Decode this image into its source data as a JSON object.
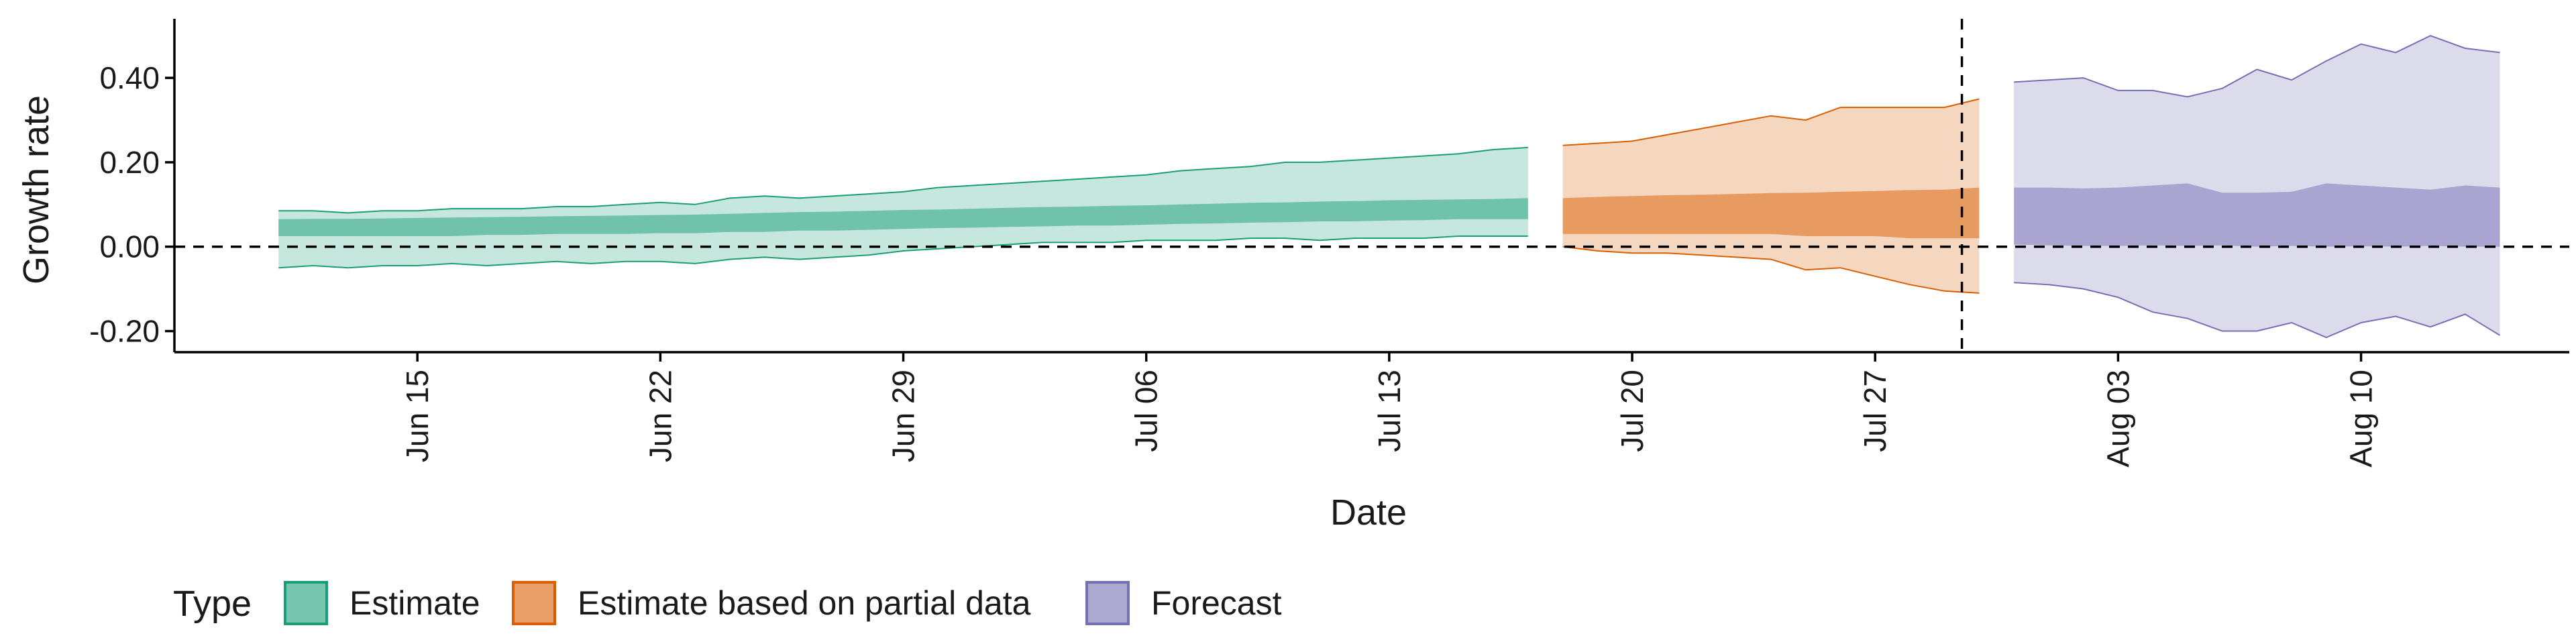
{
  "chart_data": {
    "type": "area",
    "xlabel": "Date",
    "ylabel": "Growth rate",
    "x_ticks": [
      "Jun 15",
      "Jun 22",
      "Jun 29",
      "Jul 06",
      "Jul 13",
      "Jul 20",
      "Jul 27",
      "Aug 03",
      "Aug 10"
    ],
    "y_ticks": [
      "0.40",
      "0.20",
      "0.00",
      "-0.20"
    ],
    "ylim": [
      -0.25,
      0.54
    ],
    "xlim": [
      "2020-06-08",
      "2020-08-16"
    ],
    "reference_lines": {
      "horizontal_y": 0,
      "vertical_x": "2020-07-30"
    },
    "legend": {
      "title": "Type",
      "placement": "bottom-left",
      "entries": [
        "Estimate",
        "Estimate based on partial data",
        "Forecast"
      ]
    },
    "series": [
      {
        "name": "Estimate",
        "color": "#1b9e77",
        "dates": [
          "2020-06-11",
          "2020-06-12",
          "2020-06-13",
          "2020-06-14",
          "2020-06-15",
          "2020-06-16",
          "2020-06-17",
          "2020-06-18",
          "2020-06-19",
          "2020-06-20",
          "2020-06-21",
          "2020-06-22",
          "2020-06-23",
          "2020-06-24",
          "2020-06-25",
          "2020-06-26",
          "2020-06-27",
          "2020-06-28",
          "2020-06-29",
          "2020-06-30",
          "2020-07-01",
          "2020-07-02",
          "2020-07-03",
          "2020-07-04",
          "2020-07-05",
          "2020-07-06",
          "2020-07-07",
          "2020-07-08",
          "2020-07-09",
          "2020-07-10",
          "2020-07-11",
          "2020-07-12",
          "2020-07-13",
          "2020-07-14",
          "2020-07-15",
          "2020-07-16",
          "2020-07-17"
        ],
        "lower90": [
          -0.05,
          -0.045,
          -0.05,
          -0.045,
          -0.045,
          -0.04,
          -0.045,
          -0.04,
          -0.035,
          -0.04,
          -0.035,
          -0.035,
          -0.04,
          -0.03,
          -0.025,
          -0.03,
          -0.025,
          -0.02,
          -0.01,
          -0.005,
          0.0,
          0.005,
          0.01,
          0.01,
          0.01,
          0.015,
          0.015,
          0.015,
          0.02,
          0.02,
          0.015,
          0.02,
          0.02,
          0.02,
          0.025,
          0.025,
          0.025
        ],
        "upper90": [
          0.085,
          0.085,
          0.08,
          0.085,
          0.085,
          0.09,
          0.09,
          0.09,
          0.095,
          0.095,
          0.1,
          0.105,
          0.1,
          0.115,
          0.12,
          0.115,
          0.12,
          0.125,
          0.13,
          0.14,
          0.145,
          0.15,
          0.155,
          0.16,
          0.165,
          0.17,
          0.18,
          0.185,
          0.19,
          0.2,
          0.2,
          0.205,
          0.21,
          0.215,
          0.22,
          0.23,
          0.235
        ],
        "lower50": [
          0.025,
          0.025,
          0.025,
          0.025,
          0.025,
          0.025,
          0.028,
          0.028,
          0.03,
          0.03,
          0.03,
          0.032,
          0.032,
          0.035,
          0.035,
          0.038,
          0.038,
          0.04,
          0.042,
          0.044,
          0.045,
          0.047,
          0.048,
          0.05,
          0.05,
          0.052,
          0.054,
          0.055,
          0.057,
          0.058,
          0.06,
          0.06,
          0.062,
          0.063,
          0.065,
          0.065,
          0.065
        ],
        "upper50": [
          0.065,
          0.066,
          0.066,
          0.067,
          0.068,
          0.069,
          0.07,
          0.071,
          0.072,
          0.073,
          0.074,
          0.075,
          0.076,
          0.078,
          0.08,
          0.082,
          0.083,
          0.085,
          0.087,
          0.088,
          0.09,
          0.092,
          0.094,
          0.095,
          0.097,
          0.098,
          0.1,
          0.102,
          0.104,
          0.105,
          0.107,
          0.108,
          0.11,
          0.111,
          0.112,
          0.113,
          0.115
        ]
      },
      {
        "name": "Estimate based on partial data",
        "color": "#d95f02",
        "dates": [
          "2020-07-18",
          "2020-07-19",
          "2020-07-20",
          "2020-07-21",
          "2020-07-22",
          "2020-07-23",
          "2020-07-24",
          "2020-07-25",
          "2020-07-26",
          "2020-07-27",
          "2020-07-28",
          "2020-07-29",
          "2020-07-30"
        ],
        "lower90": [
          0.0,
          -0.01,
          -0.015,
          -0.015,
          -0.02,
          -0.025,
          -0.03,
          -0.055,
          -0.05,
          -0.07,
          -0.09,
          -0.105,
          -0.11
        ],
        "upper90": [
          0.24,
          0.245,
          0.25,
          0.265,
          0.28,
          0.295,
          0.31,
          0.3,
          0.33,
          0.33,
          0.33,
          0.33,
          0.35
        ],
        "lower50": [
          0.03,
          0.03,
          0.03,
          0.03,
          0.03,
          0.03,
          0.03,
          0.025,
          0.025,
          0.025,
          0.02,
          0.02,
          0.02
        ],
        "upper50": [
          0.115,
          0.118,
          0.12,
          0.122,
          0.123,
          0.125,
          0.127,
          0.128,
          0.13,
          0.132,
          0.134,
          0.135,
          0.14
        ]
      },
      {
        "name": "Forecast",
        "color": "#7570b3",
        "dates": [
          "2020-07-31",
          "2020-08-01",
          "2020-08-02",
          "2020-08-03",
          "2020-08-04",
          "2020-08-05",
          "2020-08-06",
          "2020-08-07",
          "2020-08-08",
          "2020-08-09",
          "2020-08-10",
          "2020-08-11",
          "2020-08-12",
          "2020-08-13",
          "2020-08-14"
        ],
        "lower90": [
          -0.085,
          -0.09,
          -0.1,
          -0.12,
          -0.155,
          -0.17,
          -0.2,
          -0.2,
          -0.18,
          -0.215,
          -0.18,
          -0.165,
          -0.19,
          -0.16,
          -0.21
        ],
        "upper90": [
          0.39,
          0.395,
          0.4,
          0.37,
          0.37,
          0.355,
          0.375,
          0.42,
          0.395,
          0.44,
          0.48,
          0.46,
          0.5,
          0.47,
          0.46
        ],
        "lower50": [
          0.005,
          0.003,
          0.002,
          0.002,
          0.003,
          0.002,
          0.003,
          0.0,
          0.002,
          0.0,
          0.001,
          0.0,
          0.002,
          0.0,
          0.0
        ],
        "upper50": [
          0.14,
          0.14,
          0.138,
          0.14,
          0.145,
          0.15,
          0.128,
          0.128,
          0.13,
          0.15,
          0.145,
          0.14,
          0.135,
          0.145,
          0.14
        ]
      }
    ]
  }
}
